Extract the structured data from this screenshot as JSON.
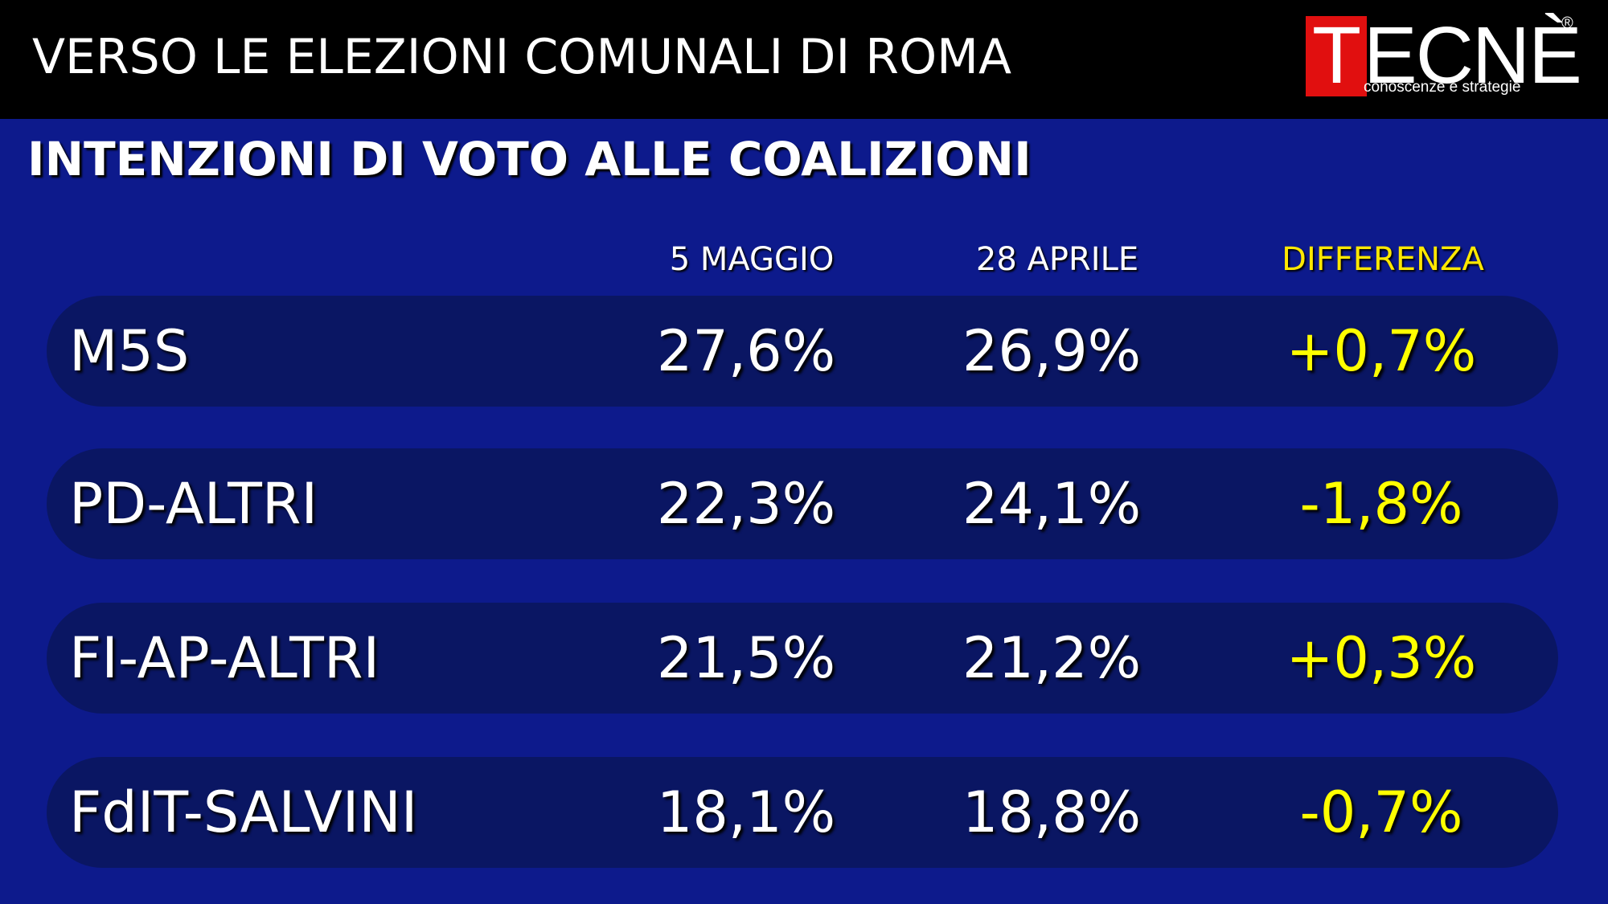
{
  "header": {
    "title": "VERSO LE ELEZIONI COMUNALI DI ROMA",
    "logo": {
      "letter": "T",
      "rest": "ECNÈ",
      "registered": "®",
      "tagline": "conoscenze e strategie"
    }
  },
  "subtitle": "INTENZIONI DI VOTO ALLE COALIZIONI",
  "columns": {
    "may": "5 MAGGIO",
    "apr": "28 APRILE",
    "diff": "DIFFERENZA"
  },
  "colors": {
    "background": "#0d1a8c",
    "row": "#0a1663",
    "diff": "#ffff00",
    "logo_red": "#e10f0f"
  },
  "rows": [
    {
      "name": "M5S",
      "may": "27,6%",
      "apr": "26,9%",
      "diff": "+0,7%"
    },
    {
      "name": "PD-ALTRI",
      "may": "22,3%",
      "apr": "24,1%",
      "diff": "-1,8%"
    },
    {
      "name": "FI-AP-ALTRI",
      "may": "21,5%",
      "apr": "21,2%",
      "diff": "+0,3%"
    },
    {
      "name": "FdIT-SALVINI",
      "may": "18,1%",
      "apr": "18,8%",
      "diff": "-0,7%"
    }
  ]
}
